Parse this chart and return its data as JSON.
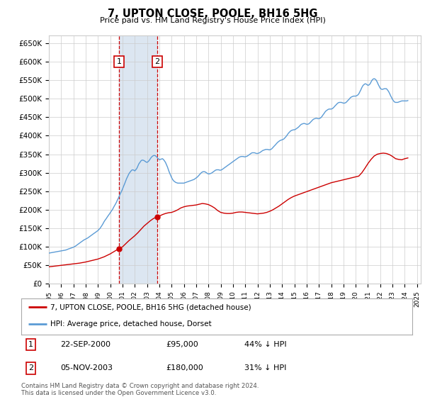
{
  "title": "7, UPTON CLOSE, POOLE, BH16 5HG",
  "subtitle": "Price paid vs. HM Land Registry's House Price Index (HPI)",
  "ylim": [
    0,
    670000
  ],
  "yticks": [
    0,
    50000,
    100000,
    150000,
    200000,
    250000,
    300000,
    350000,
    400000,
    450000,
    500000,
    550000,
    600000,
    650000
  ],
  "ytick_labels": [
    "£0",
    "£50K",
    "£100K",
    "£150K",
    "£200K",
    "£250K",
    "£300K",
    "£350K",
    "£400K",
    "£450K",
    "£500K",
    "£550K",
    "£600K",
    "£650K"
  ],
  "sale1": {
    "date": 2000.72,
    "price": 95000,
    "label": "1"
  },
  "sale2": {
    "date": 2003.84,
    "price": 180000,
    "label": "2"
  },
  "legend_line1": "7, UPTON CLOSE, POOLE, BH16 5HG (detached house)",
  "legend_line2": "HPI: Average price, detached house, Dorset",
  "footer": "Contains HM Land Registry data © Crown copyright and database right 2024.\nThis data is licensed under the Open Government Licence v3.0.",
  "red_color": "#cc0000",
  "blue_color": "#5b9bd5",
  "shade_color": "#dce6f1",
  "grid_color": "#cccccc",
  "bg_color": "#ffffff",
  "hpi_years": [
    1995.0,
    1995.08,
    1995.17,
    1995.25,
    1995.33,
    1995.42,
    1995.5,
    1995.58,
    1995.67,
    1995.75,
    1995.83,
    1995.92,
    1996.0,
    1996.08,
    1996.17,
    1996.25,
    1996.33,
    1996.42,
    1996.5,
    1996.58,
    1996.67,
    1996.75,
    1996.83,
    1996.92,
    1997.0,
    1997.08,
    1997.17,
    1997.25,
    1997.33,
    1997.42,
    1997.5,
    1997.58,
    1997.67,
    1997.75,
    1997.83,
    1997.92,
    1998.0,
    1998.08,
    1998.17,
    1998.25,
    1998.33,
    1998.42,
    1998.5,
    1998.58,
    1998.67,
    1998.75,
    1998.83,
    1998.92,
    1999.0,
    1999.08,
    1999.17,
    1999.25,
    1999.33,
    1999.42,
    1999.5,
    1999.58,
    1999.67,
    1999.75,
    1999.83,
    1999.92,
    2000.0,
    2000.08,
    2000.17,
    2000.25,
    2000.33,
    2000.42,
    2000.5,
    2000.58,
    2000.67,
    2000.75,
    2000.83,
    2000.92,
    2001.0,
    2001.08,
    2001.17,
    2001.25,
    2001.33,
    2001.42,
    2001.5,
    2001.58,
    2001.67,
    2001.75,
    2001.83,
    2001.92,
    2002.0,
    2002.08,
    2002.17,
    2002.25,
    2002.33,
    2002.42,
    2002.5,
    2002.58,
    2002.67,
    2002.75,
    2002.83,
    2002.92,
    2003.0,
    2003.08,
    2003.17,
    2003.25,
    2003.33,
    2003.42,
    2003.5,
    2003.58,
    2003.67,
    2003.75,
    2003.83,
    2003.92,
    2004.0,
    2004.08,
    2004.17,
    2004.25,
    2004.33,
    2004.42,
    2004.5,
    2004.58,
    2004.67,
    2004.75,
    2004.83,
    2004.92,
    2005.0,
    2005.08,
    2005.17,
    2005.25,
    2005.33,
    2005.42,
    2005.5,
    2005.58,
    2005.67,
    2005.75,
    2005.83,
    2005.92,
    2006.0,
    2006.08,
    2006.17,
    2006.25,
    2006.33,
    2006.42,
    2006.5,
    2006.58,
    2006.67,
    2006.75,
    2006.83,
    2006.92,
    2007.0,
    2007.08,
    2007.17,
    2007.25,
    2007.33,
    2007.42,
    2007.5,
    2007.58,
    2007.67,
    2007.75,
    2007.83,
    2007.92,
    2008.0,
    2008.08,
    2008.17,
    2008.25,
    2008.33,
    2008.42,
    2008.5,
    2008.58,
    2008.67,
    2008.75,
    2008.83,
    2008.92,
    2009.0,
    2009.08,
    2009.17,
    2009.25,
    2009.33,
    2009.42,
    2009.5,
    2009.58,
    2009.67,
    2009.75,
    2009.83,
    2009.92,
    2010.0,
    2010.08,
    2010.17,
    2010.25,
    2010.33,
    2010.42,
    2010.5,
    2010.58,
    2010.67,
    2010.75,
    2010.83,
    2010.92,
    2011.0,
    2011.08,
    2011.17,
    2011.25,
    2011.33,
    2011.42,
    2011.5,
    2011.58,
    2011.67,
    2011.75,
    2011.83,
    2011.92,
    2012.0,
    2012.08,
    2012.17,
    2012.25,
    2012.33,
    2012.42,
    2012.5,
    2012.58,
    2012.67,
    2012.75,
    2012.83,
    2012.92,
    2013.0,
    2013.08,
    2013.17,
    2013.25,
    2013.33,
    2013.42,
    2013.5,
    2013.58,
    2013.67,
    2013.75,
    2013.83,
    2013.92,
    2014.0,
    2014.08,
    2014.17,
    2014.25,
    2014.33,
    2014.42,
    2014.5,
    2014.58,
    2014.67,
    2014.75,
    2014.83,
    2014.92,
    2015.0,
    2015.08,
    2015.17,
    2015.25,
    2015.33,
    2015.42,
    2015.5,
    2015.58,
    2015.67,
    2015.75,
    2015.83,
    2015.92,
    2016.0,
    2016.08,
    2016.17,
    2016.25,
    2016.33,
    2016.42,
    2016.5,
    2016.58,
    2016.67,
    2016.75,
    2016.83,
    2016.92,
    2017.0,
    2017.08,
    2017.17,
    2017.25,
    2017.33,
    2017.42,
    2017.5,
    2017.58,
    2017.67,
    2017.75,
    2017.83,
    2017.92,
    2018.0,
    2018.08,
    2018.17,
    2018.25,
    2018.33,
    2018.42,
    2018.5,
    2018.58,
    2018.67,
    2018.75,
    2018.83,
    2018.92,
    2019.0,
    2019.08,
    2019.17,
    2019.25,
    2019.33,
    2019.42,
    2019.5,
    2019.58,
    2019.67,
    2019.75,
    2019.83,
    2019.92,
    2020.0,
    2020.08,
    2020.17,
    2020.25,
    2020.33,
    2020.42,
    2020.5,
    2020.58,
    2020.67,
    2020.75,
    2020.83,
    2020.92,
    2021.0,
    2021.08,
    2021.17,
    2021.25,
    2021.33,
    2021.42,
    2021.5,
    2021.58,
    2021.67,
    2021.75,
    2021.83,
    2021.92,
    2022.0,
    2022.08,
    2022.17,
    2022.25,
    2022.33,
    2022.42,
    2022.5,
    2022.58,
    2022.67,
    2022.75,
    2022.83,
    2022.92,
    2023.0,
    2023.08,
    2023.17,
    2023.25,
    2023.33,
    2023.42,
    2023.5,
    2023.58,
    2023.67,
    2023.75,
    2023.83,
    2023.92,
    2024.0,
    2024.08,
    2024.17,
    2024.25
  ],
  "hpi_values": [
    83000,
    83500,
    84000,
    84500,
    85000,
    85500,
    86000,
    86500,
    87000,
    87500,
    88000,
    88500,
    89000,
    89500,
    90000,
    90500,
    91000,
    91800,
    93000,
    94000,
    95000,
    96000,
    97000,
    98000,
    99000,
    100500,
    102000,
    104000,
    106000,
    108000,
    110000,
    112000,
    114000,
    116000,
    118000,
    119500,
    121000,
    122500,
    124000,
    126000,
    128000,
    130000,
    132000,
    134000,
    136000,
    138000,
    140000,
    142000,
    144000,
    147000,
    150000,
    154000,
    158000,
    163000,
    168000,
    172000,
    176000,
    180000,
    184000,
    188000,
    192000,
    196000,
    200000,
    205000,
    210000,
    215000,
    220000,
    226000,
    232000,
    238000,
    244000,
    250000,
    256000,
    263000,
    270000,
    277000,
    284000,
    290000,
    296000,
    300000,
    304000,
    307000,
    308000,
    307000,
    305000,
    308000,
    312000,
    318000,
    324000,
    328000,
    332000,
    334000,
    334000,
    333000,
    331000,
    329000,
    328000,
    330000,
    333000,
    337000,
    341000,
    344000,
    346000,
    347000,
    346000,
    344000,
    341000,
    338000,
    335000,
    336000,
    337000,
    338000,
    336000,
    332000,
    328000,
    322000,
    315000,
    307000,
    300000,
    293000,
    287000,
    282000,
    278000,
    276000,
    274000,
    273000,
    272000,
    272000,
    272000,
    272000,
    272000,
    272000,
    272000,
    273000,
    274000,
    275000,
    276000,
    277000,
    278000,
    279000,
    280000,
    281000,
    282000,
    284000,
    286000,
    288000,
    291000,
    294000,
    297000,
    300000,
    302000,
    303000,
    303000,
    302000,
    300000,
    298000,
    297000,
    297000,
    298000,
    299000,
    301000,
    303000,
    305000,
    307000,
    308000,
    308000,
    308000,
    307000,
    307000,
    308000,
    310000,
    312000,
    314000,
    316000,
    318000,
    320000,
    322000,
    324000,
    326000,
    328000,
    330000,
    332000,
    334000,
    336000,
    338000,
    340000,
    342000,
    343000,
    344000,
    344000,
    344000,
    343000,
    343000,
    344000,
    345000,
    347000,
    349000,
    351000,
    353000,
    354000,
    354000,
    354000,
    353000,
    352000,
    352000,
    353000,
    354000,
    356000,
    358000,
    360000,
    361000,
    362000,
    363000,
    363000,
    363000,
    362000,
    362000,
    363000,
    365000,
    368000,
    371000,
    374000,
    377000,
    380000,
    383000,
    385000,
    387000,
    388000,
    389000,
    390000,
    392000,
    395000,
    398000,
    402000,
    406000,
    409000,
    412000,
    414000,
    415000,
    416000,
    416000,
    417000,
    419000,
    421000,
    423000,
    426000,
    429000,
    431000,
    432000,
    433000,
    433000,
    432000,
    431000,
    431000,
    432000,
    434000,
    437000,
    440000,
    443000,
    445000,
    446000,
    447000,
    447000,
    446000,
    446000,
    447000,
    449000,
    452000,
    456000,
    460000,
    464000,
    467000,
    469000,
    471000,
    472000,
    472000,
    472000,
    473000,
    475000,
    478000,
    481000,
    484000,
    487000,
    489000,
    490000,
    490000,
    490000,
    489000,
    488000,
    488000,
    489000,
    491000,
    494000,
    497000,
    500000,
    503000,
    505000,
    506000,
    507000,
    507000,
    507000,
    508000,
    510000,
    513000,
    518000,
    524000,
    530000,
    535000,
    538000,
    540000,
    540000,
    538000,
    536000,
    537000,
    540000,
    545000,
    550000,
    553000,
    554000,
    553000,
    550000,
    545000,
    539000,
    533000,
    528000,
    526000,
    525000,
    526000,
    527000,
    527000,
    527000,
    524000,
    520000,
    515000,
    509000,
    503000,
    498000,
    494000,
    491000,
    490000,
    490000,
    490000,
    491000,
    492000,
    493000,
    494000,
    494000,
    494000,
    494000,
    494000,
    494000,
    495000
  ],
  "red_years": [
    1995.0,
    1995.25,
    1995.5,
    1995.75,
    1996.0,
    1996.25,
    1996.5,
    1996.75,
    1997.0,
    1997.25,
    1997.5,
    1997.75,
    1998.0,
    1998.25,
    1998.5,
    1998.75,
    1999.0,
    1999.25,
    1999.5,
    1999.75,
    2000.0,
    2000.25,
    2000.5,
    2000.75,
    2001.0,
    2001.25,
    2001.5,
    2001.75,
    2002.0,
    2002.25,
    2002.5,
    2002.75,
    2003.0,
    2003.25,
    2003.5,
    2003.75,
    2004.0,
    2004.25,
    2004.5,
    2004.75,
    2005.0,
    2005.25,
    2005.5,
    2005.75,
    2006.0,
    2006.25,
    2006.5,
    2006.75,
    2007.0,
    2007.25,
    2007.5,
    2007.75,
    2008.0,
    2008.25,
    2008.5,
    2008.75,
    2009.0,
    2009.25,
    2009.5,
    2009.75,
    2010.0,
    2010.25,
    2010.5,
    2010.75,
    2011.0,
    2011.25,
    2011.5,
    2011.75,
    2012.0,
    2012.25,
    2012.5,
    2012.75,
    2013.0,
    2013.25,
    2013.5,
    2013.75,
    2014.0,
    2014.25,
    2014.5,
    2014.75,
    2015.0,
    2015.25,
    2015.5,
    2015.75,
    2016.0,
    2016.25,
    2016.5,
    2016.75,
    2017.0,
    2017.25,
    2017.5,
    2017.75,
    2018.0,
    2018.25,
    2018.5,
    2018.75,
    2019.0,
    2019.25,
    2019.5,
    2019.75,
    2020.0,
    2020.25,
    2020.5,
    2020.75,
    2021.0,
    2021.25,
    2021.5,
    2021.75,
    2022.0,
    2022.25,
    2022.5,
    2022.75,
    2023.0,
    2023.25,
    2023.5,
    2023.75,
    2024.0,
    2024.25
  ],
  "red_values": [
    46000,
    47000,
    48000,
    49000,
    50000,
    51000,
    52000,
    53000,
    54000,
    55000,
    56000,
    57500,
    59000,
    61000,
    63000,
    65000,
    67000,
    70000,
    73000,
    77000,
    81000,
    86000,
    91000,
    95000,
    100000,
    108000,
    116000,
    123000,
    130000,
    138000,
    147000,
    156000,
    163000,
    170000,
    176000,
    180000,
    183000,
    187000,
    190000,
    192000,
    193000,
    196000,
    200000,
    205000,
    208000,
    210000,
    211000,
    212000,
    213000,
    215000,
    217000,
    216000,
    214000,
    210000,
    205000,
    198000,
    193000,
    191000,
    190000,
    190000,
    191000,
    193000,
    194000,
    194000,
    193000,
    192000,
    191000,
    190000,
    189000,
    190000,
    191000,
    193000,
    196000,
    200000,
    205000,
    210000,
    216000,
    222000,
    228000,
    233000,
    237000,
    240000,
    243000,
    246000,
    249000,
    252000,
    255000,
    258000,
    261000,
    264000,
    267000,
    270000,
    273000,
    275000,
    277000,
    279000,
    281000,
    283000,
    285000,
    287000,
    289000,
    291000,
    300000,
    312000,
    325000,
    336000,
    345000,
    350000,
    352000,
    353000,
    352000,
    349000,
    344000,
    338000,
    336000,
    335000,
    338000,
    340000
  ]
}
